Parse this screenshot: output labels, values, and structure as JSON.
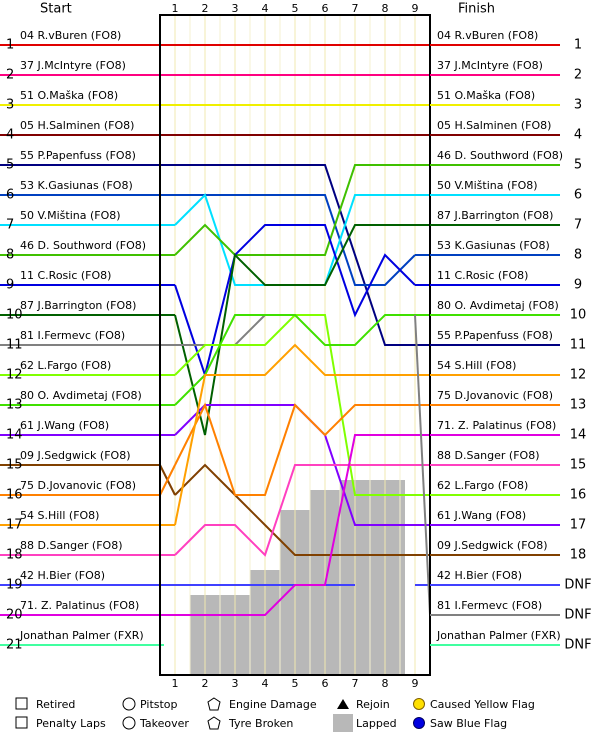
{
  "chart_data": {
    "type": "line",
    "start_label": "Start",
    "finish_label": "Finish",
    "xlim": [
      0.5,
      9.5
    ],
    "xticks": [
      1,
      2,
      3,
      4,
      5,
      6,
      7,
      8,
      9
    ],
    "ylim": [
      22,
      0
    ],
    "yticks": [
      1,
      2,
      3,
      4,
      5,
      6,
      7,
      8,
      9,
      10,
      11,
      12,
      13,
      14,
      15,
      16,
      17,
      18,
      19,
      20,
      21
    ],
    "finish": [
      "04 R.vBuren (FO8)",
      "37 J.McIntyre (FO8)",
      "51 O.Maška (FO8)",
      "05 H.Salminen (FO8)",
      "46 D. Southword (FO8)",
      "50 V.Miština (FO8)",
      "87 J.Barrington (FO8)",
      "53 K.Gasiunas (FO8)",
      "11 C.Rosic (FO8)",
      "80 O. Avdimetaj (FO8)",
      "55 P.Papenfuss (FO8)",
      "54 S.Hill (FO8)",
      "75 D.Jovanovic (FO8)",
      "71. Z. Palatinus (FO8)",
      "88 D.Sanger (FO8)",
      "62 L.Fargo (FO8)",
      "61 J.Wang (FO8)",
      "09 J.Sedgwick (FO8)",
      "42 H.Bier (FO8)",
      "81 I.Fermevc (FO8)",
      "Jonathan Palmer (FXR)"
    ],
    "finish_positions": [
      "1",
      "2",
      "3",
      "4",
      "5",
      "6",
      "7",
      "8",
      "9",
      "10",
      "11",
      "12",
      "13",
      "14",
      "15",
      "16",
      "17",
      "18",
      "DNF",
      "DNF",
      "DNF"
    ],
    "series": [
      {
        "name": "04 R.vBuren (FO8)",
        "color": "#e00000",
        "start": 1,
        "values": [
          1,
          1,
          1,
          1,
          1,
          1,
          1,
          1,
          1
        ]
      },
      {
        "name": "37 J.McIntyre (FO8)",
        "color": "#ff0080",
        "start": 2,
        "values": [
          2,
          2,
          2,
          2,
          2,
          2,
          2,
          2,
          2
        ]
      },
      {
        "name": "51 O.Maška (FO8)",
        "color": "#f0f000",
        "start": 3,
        "values": [
          3,
          3,
          3,
          3,
          3,
          3,
          3,
          3,
          3
        ]
      },
      {
        "name": "05 H.Salminen (FO8)",
        "color": "#800000",
        "start": 4,
        "values": [
          4,
          4,
          4,
          4,
          4,
          4,
          4,
          4,
          4
        ]
      },
      {
        "name": "55 P.Papenfuss (FO8)",
        "color": "#000080",
        "start": 5,
        "values": [
          5,
          5,
          5,
          5,
          5,
          5,
          8,
          11,
          11
        ]
      },
      {
        "name": "53 K.Gasiunas (FO8)",
        "color": "#0040c0",
        "start": 6,
        "values": [
          6,
          6,
          6,
          6,
          6,
          6,
          9,
          9,
          8
        ]
      },
      {
        "name": "50 V.Miština (FO8)",
        "color": "#00e0ff",
        "start": 7,
        "values": [
          7,
          6,
          9,
          9,
          9,
          9,
          6,
          6,
          6
        ]
      },
      {
        "name": "46 D. Southword (FO8)",
        "color": "#40c000",
        "start": 8,
        "values": [
          8,
          7,
          8,
          8,
          8,
          8,
          5,
          5,
          5
        ]
      },
      {
        "name": "11 C.Rosic (FO8)",
        "color": "#0000e0",
        "start": 9,
        "values": [
          9,
          12,
          8,
          7,
          7,
          7,
          10,
          8,
          9
        ]
      },
      {
        "name": "87 J.Barrington (FO8)",
        "color": "#006000",
        "start": 10,
        "values": [
          10,
          14,
          8,
          9,
          9,
          9,
          7,
          7,
          7
        ]
      },
      {
        "name": "81 I.Fermevc (FO8)",
        "color": "#808080",
        "start": 11,
        "values": [
          11,
          11,
          11,
          10,
          null,
          null,
          null,
          null,
          null
        ]
      },
      {
        "name": "62 L.Fargo (FO8)",
        "color": "#80ff00",
        "start": 12,
        "values": [
          12,
          11,
          11,
          11,
          10,
          10,
          16,
          16,
          16
        ]
      },
      {
        "name": "80 O. Avdimetaj (FO8)",
        "color": "#40e000",
        "start": 13,
        "values": [
          13,
          12,
          10,
          10,
          10,
          11,
          11,
          10,
          10
        ]
      },
      {
        "name": "61 J.Wang (FO8)",
        "color": "#8000ff",
        "start": 14,
        "values": [
          14,
          13,
          13,
          13,
          13,
          14,
          17,
          17,
          17
        ]
      },
      {
        "name": "09 J.Sedgwick (FO8)",
        "color": "#804000",
        "start": 15,
        "values": [
          16,
          15,
          16,
          17,
          18,
          18,
          18,
          18,
          18
        ]
      },
      {
        "name": "75 D.Jovanovic (FO8)",
        "color": "#ff8000",
        "start": 16,
        "values": [
          15,
          13,
          16,
          16,
          13,
          14,
          13,
          13,
          13
        ]
      },
      {
        "name": "54 S.Hill (FO8)",
        "color": "#ffa000",
        "start": 17,
        "values": [
          17,
          12,
          12,
          12,
          11,
          12,
          12,
          12,
          12
        ]
      },
      {
        "name": "88 D.Sanger (FO8)",
        "color": "#ff40c0",
        "start": 18,
        "values": [
          18,
          17,
          17,
          18,
          15,
          15,
          15,
          15,
          15
        ]
      },
      {
        "name": "42 H.Bier (FO8)",
        "color": "#4040ff",
        "start": 19,
        "values": [
          19,
          19,
          19,
          19,
          19,
          19,
          19,
          null,
          null
        ]
      },
      {
        "name": "71. Z. Palatinus (FO8)",
        "color": "#e000e0",
        "start": 20,
        "values": [
          20,
          20,
          20,
          20,
          19,
          19,
          14,
          14,
          14
        ]
      },
      {
        "name": "Jonathan Palmer (FXR)",
        "color": "#40ffa0",
        "start": 21,
        "values": [
          null,
          null,
          null,
          null,
          null,
          null,
          null,
          null,
          null
        ]
      }
    ],
    "legend": [
      "Retired",
      "Penalty Laps",
      "Pitstop",
      "Takeover",
      "Engine Damage",
      "Tyre Broken",
      "Rejoin",
      "Lapped",
      "Caused Yellow Flag",
      "Saw Blue Flag"
    ]
  }
}
